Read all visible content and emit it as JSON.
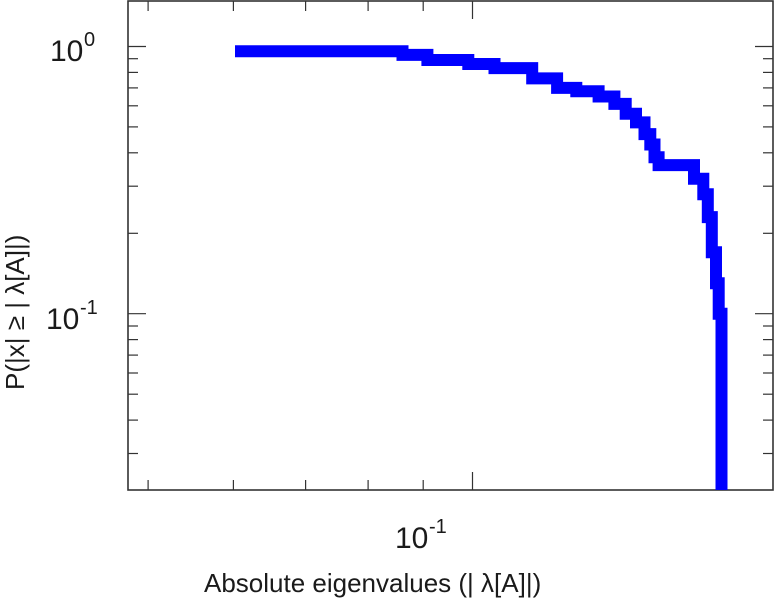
{
  "chart_data": {
    "type": "line",
    "step": true,
    "scale": {
      "x": "log",
      "y": "log"
    },
    "xlim": [
      0.0479,
      0.19
    ],
    "ylim": [
      0.0219,
      1.48
    ],
    "xlabel": "Absolute eigenvalues (|     λ[A]|)",
    "ylabel": "P(|x|  ≥ | λ[A]|)",
    "x_tick_labels": [
      {
        "value": 0.1,
        "base": "10",
        "exp": "-1"
      }
    ],
    "y_tick_labels": [
      {
        "value": 1,
        "base": "10",
        "exp": "0"
      },
      {
        "value": 0.1,
        "base": "10",
        "exp": "-1"
      }
    ],
    "grid": false,
    "series": [
      {
        "color": "#0000ff",
        "points": [
          [
            0.0602,
            0.96
          ],
          [
            0.0861,
            0.96
          ],
          [
            0.0861,
            0.93
          ],
          [
            0.0908,
            0.93
          ],
          [
            0.0908,
            0.89
          ],
          [
            0.0991,
            0.89
          ],
          [
            0.0991,
            0.86
          ],
          [
            0.1048,
            0.86
          ],
          [
            0.1048,
            0.83
          ],
          [
            0.1136,
            0.83
          ],
          [
            0.1136,
            0.76
          ],
          [
            0.1198,
            0.76
          ],
          [
            0.1198,
            0.7
          ],
          [
            0.1248,
            0.7
          ],
          [
            0.1248,
            0.68
          ],
          [
            0.1309,
            0.68
          ],
          [
            0.1309,
            0.65
          ],
          [
            0.1354,
            0.65
          ],
          [
            0.1354,
            0.61
          ],
          [
            0.1387,
            0.61
          ],
          [
            0.1387,
            0.56
          ],
          [
            0.1418,
            0.56
          ],
          [
            0.1418,
            0.52
          ],
          [
            0.1444,
            0.52
          ],
          [
            0.1444,
            0.47
          ],
          [
            0.1462,
            0.47
          ],
          [
            0.1462,
            0.43
          ],
          [
            0.1475,
            0.43
          ],
          [
            0.1475,
            0.385
          ],
          [
            0.1488,
            0.385
          ],
          [
            0.1488,
            0.36
          ],
          [
            0.1605,
            0.36
          ],
          [
            0.1605,
            0.32
          ],
          [
            0.1637,
            0.32
          ],
          [
            0.1637,
            0.28
          ],
          [
            0.1653,
            0.28
          ],
          [
            0.1653,
            0.23
          ],
          [
            0.1667,
            0.23
          ],
          [
            0.1667,
            0.17
          ],
          [
            0.1682,
            0.17
          ],
          [
            0.1682,
            0.13
          ],
          [
            0.1692,
            0.13
          ],
          [
            0.1692,
            0.1
          ],
          [
            0.1702,
            0.1
          ],
          [
            0.1702,
            0.0219
          ]
        ]
      }
    ]
  }
}
